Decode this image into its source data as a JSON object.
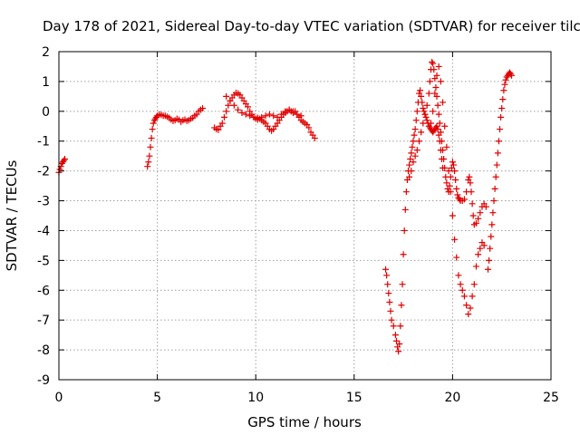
{
  "chart_data": {
    "type": "scatter",
    "title": "Day 178 of 2021, Sidereal Day-to-day VTEC variation (SDTVAR) for receiver tilc",
    "xlabel": "GPS time / hours",
    "ylabel": "SDTVAR / TECUs",
    "xlim": [
      0,
      25
    ],
    "ylim": [
      -9,
      2
    ],
    "xticks": [
      0,
      5,
      10,
      15,
      20,
      25
    ],
    "yticks": [
      -9,
      -8,
      -7,
      -6,
      -5,
      -4,
      -3,
      -2,
      -1,
      0,
      1,
      2
    ],
    "grid": true,
    "marker": "plus",
    "color": "#e00000",
    "series": [
      {
        "name": "seg1",
        "x": [
          0.0,
          0.05,
          0.1,
          0.15,
          0.2,
          0.25,
          0.3
        ],
        "y": [
          -2.05,
          -1.95,
          -1.85,
          -1.75,
          -1.7,
          -1.65,
          -1.6
        ]
      },
      {
        "name": "seg2",
        "x": [
          4.5,
          4.55,
          4.6,
          4.65,
          4.7,
          4.75,
          4.8,
          4.85,
          4.9,
          4.95,
          5.0,
          5.1,
          5.2,
          5.3,
          5.4,
          5.5,
          5.6,
          5.7,
          5.8,
          5.9,
          6.0,
          6.1,
          6.2,
          6.3,
          6.4,
          6.5,
          6.6,
          6.7,
          6.8,
          6.9,
          7.0,
          7.1,
          7.2,
          7.3
        ],
        "y": [
          -1.85,
          -1.7,
          -1.5,
          -1.2,
          -0.9,
          -0.6,
          -0.4,
          -0.3,
          -0.25,
          -0.2,
          -0.15,
          -0.1,
          -0.12,
          -0.15,
          -0.15,
          -0.18,
          -0.22,
          -0.28,
          -0.32,
          -0.3,
          -0.25,
          -0.28,
          -0.35,
          -0.3,
          -0.28,
          -0.32,
          -0.3,
          -0.25,
          -0.22,
          -0.15,
          -0.1,
          0.0,
          0.05,
          0.1
        ]
      },
      {
        "name": "seg3",
        "x": [
          7.9,
          8.0,
          8.1,
          8.2,
          8.3,
          8.4,
          8.5,
          8.6,
          8.7,
          8.8,
          8.9,
          9.0,
          9.1,
          9.2,
          9.3,
          9.4,
          9.5,
          9.6,
          9.7,
          9.8,
          9.9,
          10.0,
          10.1,
          10.2,
          10.3,
          10.4,
          10.5,
          10.6,
          10.7,
          10.8,
          10.9,
          11.0,
          11.1,
          11.2,
          11.3,
          11.4,
          11.5,
          11.6,
          11.7,
          11.8,
          11.9,
          12.0,
          12.1,
          12.2,
          12.3,
          12.4,
          12.5,
          12.6,
          12.7,
          12.8,
          12.9,
          13.0
        ],
        "y": [
          -0.55,
          -0.6,
          -0.62,
          -0.5,
          -0.4,
          -0.2,
          0.0,
          0.2,
          0.35,
          0.45,
          0.55,
          0.62,
          0.6,
          0.55,
          0.45,
          0.35,
          0.25,
          0.15,
          0.0,
          -0.1,
          -0.2,
          -0.25,
          -0.28,
          -0.25,
          -0.3,
          -0.35,
          -0.4,
          -0.5,
          -0.6,
          -0.65,
          -0.6,
          -0.5,
          -0.4,
          -0.3,
          -0.2,
          -0.1,
          -0.05,
          0.0,
          0.05,
          0.0,
          -0.05,
          0.0,
          -0.1,
          -0.2,
          -0.3,
          -0.35,
          -0.4,
          -0.45,
          -0.55,
          -0.7,
          -0.8,
          -0.9
        ]
      },
      {
        "name": "seg4",
        "x": [
          8.5,
          8.7,
          8.9,
          9.1,
          9.3,
          9.5,
          9.7,
          9.9,
          10.1,
          10.3,
          10.5,
          10.7,
          10.9,
          11.1,
          11.3,
          11.5,
          11.7,
          11.9,
          12.1,
          12.3
        ],
        "y": [
          0.5,
          0.35,
          0.2,
          0.05,
          -0.05,
          -0.1,
          -0.15,
          -0.2,
          -0.22,
          -0.2,
          -0.15,
          -0.1,
          -0.15,
          -0.2,
          -0.1,
          0.0,
          0.05,
          0.0,
          -0.1,
          -0.15
        ]
      },
      {
        "name": "seg5",
        "x": [
          16.6,
          16.65,
          16.7,
          16.75,
          16.8,
          16.85,
          16.9,
          17.0,
          17.1,
          17.15,
          17.2,
          17.25,
          17.3,
          17.35,
          17.4,
          17.45,
          17.5,
          17.55,
          17.6,
          17.65,
          17.7,
          17.75,
          17.8,
          17.85,
          17.9,
          17.95,
          18.0,
          18.05,
          18.1,
          18.15,
          18.2,
          18.25,
          18.3,
          18.35,
          18.4,
          18.45,
          18.5,
          18.55,
          18.6,
          18.65,
          18.7,
          18.75,
          18.8,
          18.85,
          18.9,
          18.95,
          19.0,
          19.05,
          19.1,
          19.15,
          19.2,
          19.25,
          19.3,
          19.35,
          19.4,
          19.45,
          19.5
        ],
        "y": [
          -5.3,
          -5.5,
          -5.8,
          -6.1,
          -6.4,
          -6.7,
          -7.0,
          -7.2,
          -7.5,
          -7.7,
          -7.9,
          -8.05,
          -7.8,
          -7.2,
          -6.5,
          -5.8,
          -4.8,
          -4.0,
          -3.3,
          -2.7,
          -2.3,
          -2.0,
          -1.8,
          -1.6,
          -1.4,
          -1.2,
          -1.0,
          -0.8,
          -0.6,
          -0.3,
          0.0,
          0.3,
          0.6,
          0.7,
          0.5,
          0.3,
          0.1,
          0.0,
          -0.1,
          -0.2,
          -0.3,
          -0.4,
          -0.5,
          -0.55,
          -0.6,
          -0.65,
          -0.7,
          -0.65,
          -0.6,
          -0.55,
          -0.5,
          -0.6,
          -0.8,
          -1.0,
          -1.3,
          -1.6,
          -1.9
        ]
      },
      {
        "name": "seg6",
        "x": [
          17.8,
          17.9,
          18.0,
          18.1,
          18.2,
          18.3,
          18.4,
          18.5,
          18.6,
          18.7,
          18.8,
          18.85,
          18.9,
          18.95,
          19.0,
          19.05,
          19.1,
          19.15,
          19.2,
          19.25,
          19.3,
          19.35,
          19.4,
          19.45,
          19.5,
          19.55,
          19.6,
          19.65,
          19.7,
          19.75,
          19.8,
          19.85,
          19.9,
          19.95,
          20.0,
          20.05,
          20.1,
          20.15,
          20.2,
          20.25,
          20.3,
          20.35,
          20.4,
          20.5,
          20.6,
          20.7,
          20.8,
          20.85,
          20.9,
          20.95,
          21.0,
          21.05,
          21.1,
          21.2,
          21.3,
          21.4,
          21.5,
          21.6,
          21.7
        ],
        "y": [
          -2.2,
          -2.0,
          -1.7,
          -1.5,
          -1.3,
          -1.0,
          -0.7,
          -0.4,
          -0.1,
          0.2,
          0.6,
          1.0,
          1.4,
          1.65,
          1.6,
          1.4,
          1.1,
          0.8,
          0.5,
          0.2,
          -0.1,
          -0.4,
          -0.7,
          -1.0,
          -1.3,
          -1.6,
          -1.9,
          -2.2,
          -2.4,
          -2.6,
          -2.7,
          -2.5,
          -2.2,
          -1.9,
          -1.7,
          -1.8,
          -2.0,
          -2.3,
          -2.6,
          -2.8,
          -2.9,
          -2.95,
          -3.0,
          -3.0,
          -2.95,
          -2.7,
          -2.3,
          -2.2,
          -2.4,
          -2.7,
          -3.1,
          -3.5,
          -3.8,
          -3.75,
          -3.6,
          -3.4,
          -3.2,
          -3.1,
          -3.2
        ]
      },
      {
        "name": "seg7",
        "x": [
          18.9,
          19.0,
          19.1,
          19.2,
          19.3,
          19.4,
          19.5,
          19.6,
          19.7,
          19.8,
          19.9,
          20.0,
          20.1,
          20.2,
          20.3,
          20.4,
          20.5,
          20.6,
          20.7,
          20.8,
          20.9,
          21.0,
          21.1,
          21.2,
          21.3,
          21.4,
          21.5,
          21.6
        ],
        "y": [
          -0.4,
          0.0,
          0.6,
          1.2,
          1.5,
          1.0,
          0.3,
          -0.5,
          -1.2,
          -2.0,
          -2.7,
          -3.5,
          -4.3,
          -4.9,
          -5.5,
          -5.8,
          -6.0,
          -6.2,
          -6.5,
          -6.8,
          -6.6,
          -6.2,
          -5.8,
          -5.2,
          -4.8,
          -4.6,
          -4.4,
          -4.5
        ]
      },
      {
        "name": "seg8",
        "x": [
          21.8,
          21.85,
          21.9,
          21.95,
          22.0,
          22.05,
          22.1,
          22.15,
          22.2,
          22.25,
          22.3,
          22.35,
          22.4,
          22.45,
          22.5,
          22.55,
          22.6,
          22.65,
          22.7,
          22.75,
          22.8,
          22.85,
          22.9,
          22.95,
          23.0
        ],
        "y": [
          -5.3,
          -5.0,
          -4.6,
          -4.2,
          -3.8,
          -3.4,
          -3.0,
          -2.6,
          -2.2,
          -1.8,
          -1.4,
          -1.0,
          -0.6,
          -0.2,
          0.1,
          0.4,
          0.7,
          0.9,
          1.05,
          1.15,
          1.2,
          1.25,
          1.3,
          1.25,
          1.2
        ]
      }
    ]
  }
}
